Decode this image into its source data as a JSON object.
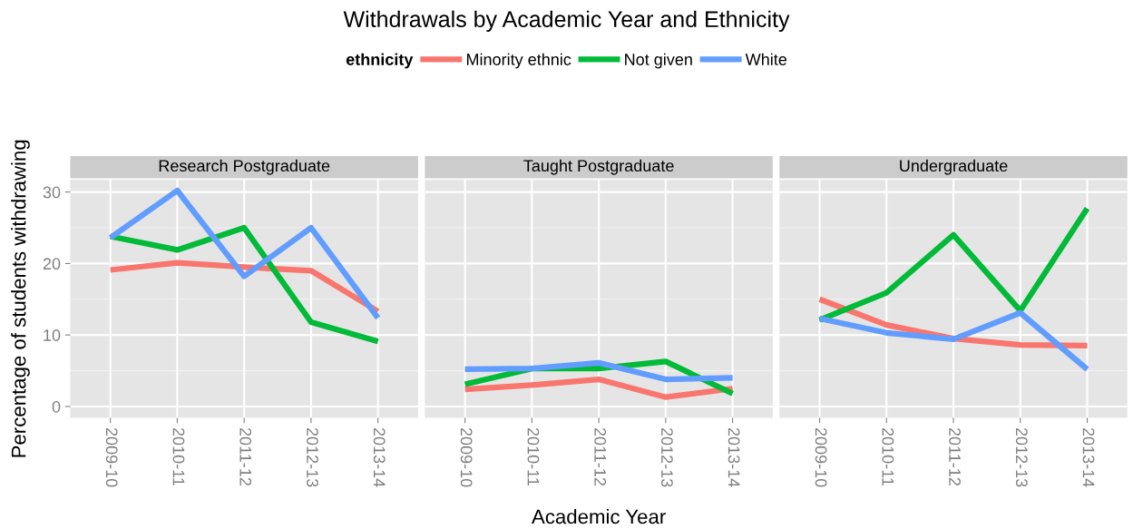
{
  "chart_data": [
    {
      "type": "line",
      "title": "Withdrawals by Academic Year and Ethnicity",
      "subtitle": "Research Postgraduate",
      "ylabel": "Percentage of students withdrawing",
      "legend_title": "ethnicity",
      "legend": "top",
      "grid": true,
      "categories": [
        "2009-10",
        "2010-11",
        "2011-12",
        "2012-13",
        "2013-14"
      ],
      "ylim": [
        -1.6,
        31.7
      ],
      "yticks": [
        0,
        10,
        20,
        30
      ],
      "series": [
        {
          "name": "Minority ethnic",
          "color": "#f8766d",
          "values": [
            19.1,
            20.1,
            19.5,
            19.0,
            13.3
          ]
        },
        {
          "name": "Not given",
          "color": "#00ba38",
          "values": [
            23.8,
            21.9,
            25.0,
            11.8,
            9.1
          ]
        },
        {
          "name": "White",
          "color": "#619cff",
          "values": [
            23.6,
            30.2,
            18.2,
            25.0,
            12.4
          ]
        }
      ]
    },
    {
      "type": "line",
      "subtitle": "Taught Postgraduate",
      "xlabel": "Academic Year",
      "grid": true,
      "tick_labels": "x",
      "categories": [
        "2009-10",
        "2010-11",
        "2011-12",
        "2012-13",
        "2013-14"
      ],
      "ylim": [
        -1.6,
        31.7
      ],
      "yticks": [
        0,
        10,
        20,
        30
      ],
      "series": [
        {
          "color": "#f8766d",
          "values": [
            2.4,
            3.0,
            3.8,
            1.3,
            2.5
          ]
        },
        {
          "color": "#00ba38",
          "values": [
            3.1,
            5.3,
            5.3,
            6.3,
            1.8
          ]
        },
        {
          "color": "#619cff",
          "values": [
            5.2,
            5.3,
            6.1,
            3.8,
            4.0
          ]
        }
      ]
    },
    {
      "type": "line",
      "subtitle": "Undergraduate",
      "grid": true,
      "tick_labels": "x",
      "categories": [
        "2009-10",
        "2010-11",
        "2011-12",
        "2012-13",
        "2013-14"
      ],
      "ylim": [
        -1.6,
        31.7
      ],
      "yticks": [
        0,
        10,
        20,
        30
      ],
      "series": [
        {
          "color": "#f8766d",
          "values": [
            15.0,
            11.4,
            9.5,
            8.6,
            8.5
          ]
        },
        {
          "color": "#00ba38",
          "values": [
            12.1,
            15.9,
            24.0,
            13.4,
            27.7
          ]
        },
        {
          "color": "#619cff",
          "values": [
            12.3,
            10.3,
            9.4,
            13.1,
            5.2
          ]
        }
      ]
    }
  ]
}
